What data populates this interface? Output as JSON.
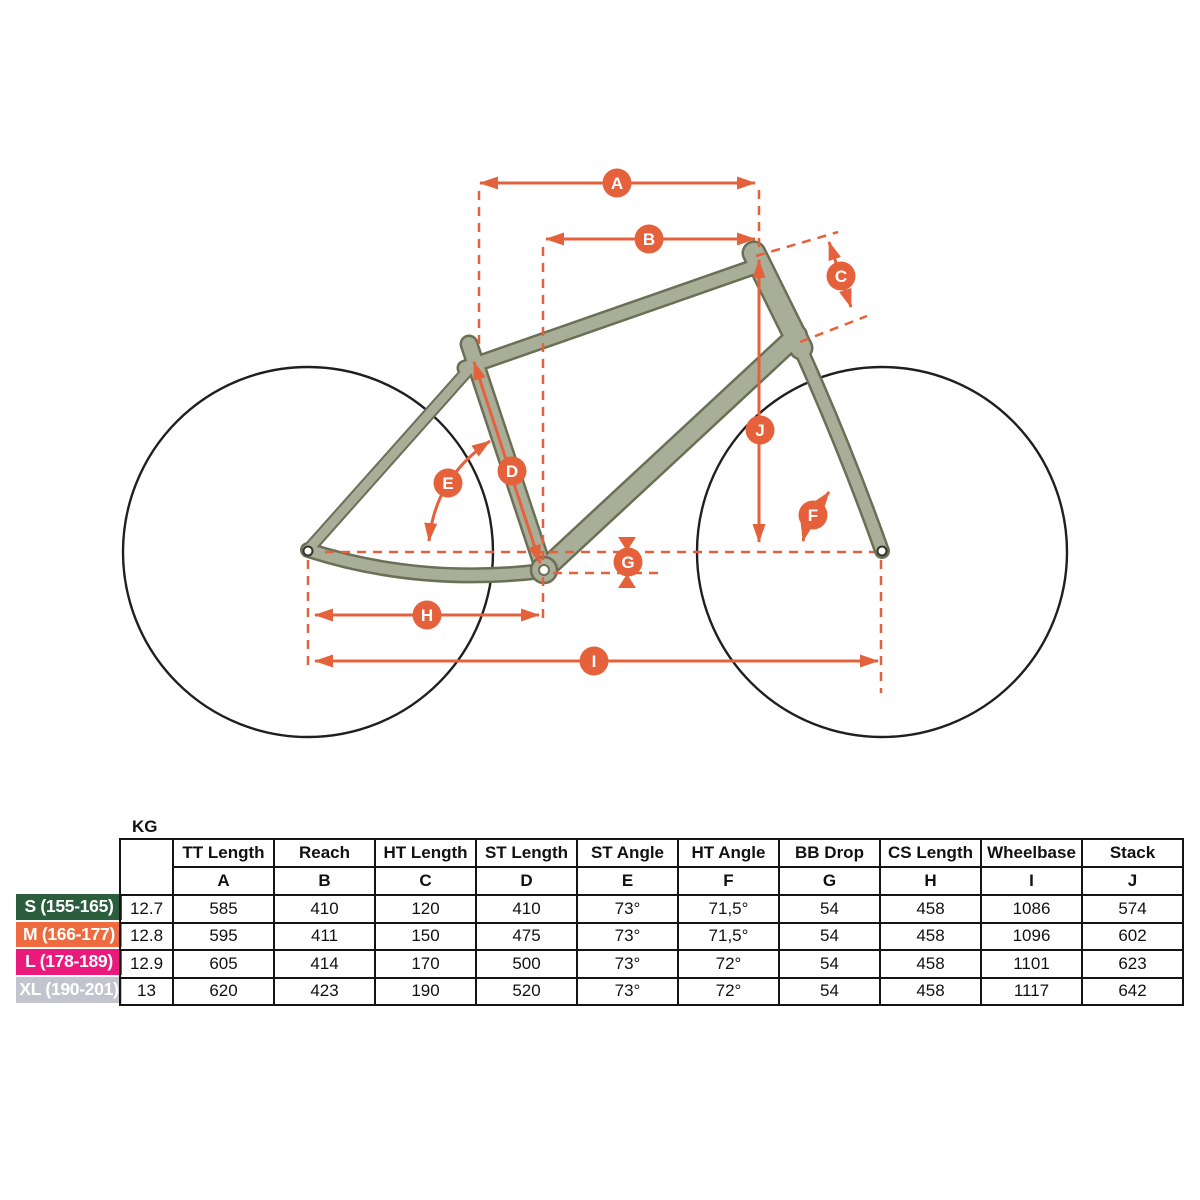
{
  "diagram": {
    "markers": [
      {
        "label": "A"
      },
      {
        "label": "B"
      },
      {
        "label": "C"
      },
      {
        "label": "D"
      },
      {
        "label": "E"
      },
      {
        "label": "F"
      },
      {
        "label": "G"
      },
      {
        "label": "H"
      },
      {
        "label": "I"
      },
      {
        "label": "J"
      }
    ],
    "colors": {
      "accent_orange": "#e5613c",
      "frame_fill": "#a9ae99",
      "frame_outline": "#6b6f55",
      "wheel_outline": "#1f1f1f"
    }
  },
  "table": {
    "kg_label": "KG",
    "columns": [
      "TT Length",
      "Reach",
      "HT Length",
      "ST Length",
      "ST Angle",
      "HT Angle",
      "BB Drop",
      "CS Length",
      "Wheelbase",
      "Stack"
    ],
    "letters": [
      "A",
      "B",
      "C",
      "D",
      "E",
      "F",
      "G",
      "H",
      "I",
      "J"
    ],
    "rows": [
      {
        "size": "S (155-165)",
        "color": "#2b5e3c",
        "kg": "12.7",
        "values": [
          "585",
          "410",
          "120",
          "410",
          "73°",
          "71,5°",
          "54",
          "458",
          "1086",
          "574"
        ]
      },
      {
        "size": "M (166-177)",
        "color": "#ed6b3e",
        "kg": "12.8",
        "values": [
          "595",
          "411",
          "150",
          "475",
          "73°",
          "71,5°",
          "54",
          "458",
          "1096",
          "602"
        ]
      },
      {
        "size": "L (178-189)",
        "color": "#e91a7b",
        "kg": "12.9",
        "values": [
          "605",
          "414",
          "170",
          "500",
          "73°",
          "72°",
          "54",
          "458",
          "1101",
          "623"
        ]
      },
      {
        "size": "XL (190-201)",
        "color": "#c2c5cd",
        "kg": "13",
        "values": [
          "620",
          "423",
          "190",
          "520",
          "73°",
          "72°",
          "54",
          "458",
          "1117",
          "642"
        ]
      }
    ]
  }
}
